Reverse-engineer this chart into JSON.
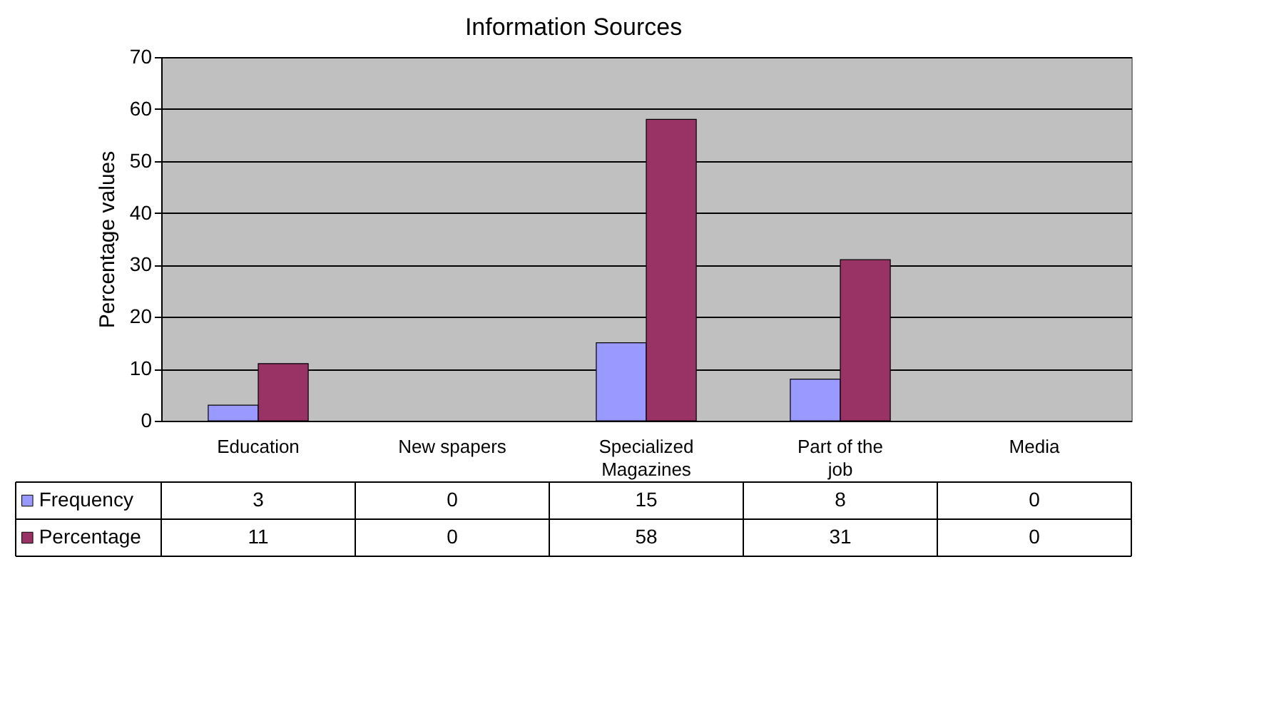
{
  "chart_data": {
    "type": "bar",
    "title": "Information Sources",
    "ylabel": "Percentage values",
    "categories": [
      "Education",
      "New spapers",
      "Specialized Magazines",
      "Part of the job",
      "Media"
    ],
    "series": [
      {
        "name": "Frequency",
        "color": "#9999ff",
        "values": [
          3,
          0,
          15,
          8,
          0
        ]
      },
      {
        "name": "Percentage",
        "color": "#993366",
        "values": [
          11,
          0,
          58,
          31,
          0
        ]
      }
    ],
    "ylim": [
      0,
      70
    ],
    "yticks": [
      0,
      10,
      20,
      30,
      40,
      50,
      60,
      70
    ],
    "grid": "y",
    "legend": "bottom",
    "data_labels": true
  }
}
